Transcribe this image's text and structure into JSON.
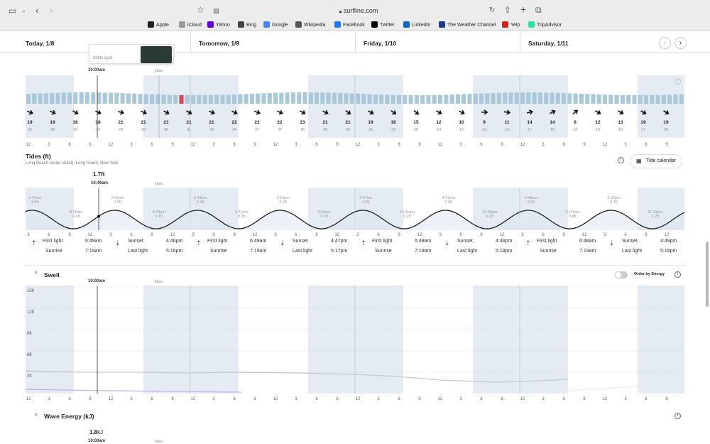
{
  "browser": {
    "url": "surfline.com",
    "bookmarks": [
      {
        "label": "Apple",
        "color": "#222"
      },
      {
        "label": "iCloud",
        "color": "#999"
      },
      {
        "label": "Yahoo",
        "color": "#6001d2"
      },
      {
        "label": "Bing",
        "color": "#444"
      },
      {
        "label": "Google",
        "color": "#4285f4"
      },
      {
        "label": "Wikipedia",
        "color": "#555"
      },
      {
        "label": "Facebook",
        "color": "#1877f2"
      },
      {
        "label": "Twitter",
        "color": "#000"
      },
      {
        "label": "LinkedIn",
        "color": "#0a66c2"
      },
      {
        "label": "The Weather Channel",
        "color": "#1d3c8f"
      },
      {
        "label": "Yelp",
        "color": "#d32323"
      },
      {
        "label": "TripAdvisor",
        "color": "#34e0a1"
      }
    ]
  },
  "days": [
    "Today, 1/8",
    "Tomorrow, 1/9",
    "Friday, 1/10",
    "Saturday, 1/11"
  ],
  "wind": {
    "tooltip_gust": "30kts gust",
    "time": "10:00am",
    "now": "Now",
    "speeds": [
      "19",
      "19",
      "18",
      "18",
      "21",
      "21",
      "21",
      "21",
      "21",
      "22",
      "22",
      "22",
      "23",
      "21",
      "21",
      "19",
      "18",
      "15",
      "12",
      "10",
      "9",
      "11",
      "14",
      "14",
      "8",
      "12",
      "13",
      "19",
      "19"
    ],
    "gusts": [
      "32",
      "30",
      "29",
      "29",
      "28",
      "29",
      "30",
      "31",
      "33",
      "34",
      "37",
      "37",
      "36",
      "30",
      "25",
      "35",
      "33",
      "25",
      "14",
      "12",
      "13",
      "13",
      "17",
      "15",
      "13",
      "12",
      "16",
      "27",
      "26"
    ],
    "hours": [
      "12",
      "3",
      "6",
      "9",
      "12",
      "3",
      "6",
      "9",
      "12",
      "3",
      "6",
      "9",
      "12",
      "3",
      "6",
      "9",
      "12",
      "3",
      "6",
      "9",
      "12",
      "3",
      "6",
      "9",
      "12",
      "3",
      "6",
      "9",
      "12",
      "3",
      "6",
      "9"
    ]
  },
  "tides": {
    "title": "Tides (ft)",
    "location": "Long Beach (outer coast), Long Island, New York",
    "calendar_button": "Tide calendar",
    "current_height": "1.7ft",
    "current_time": "10:49am",
    "now": "Now",
    "extremes": [
      {
        "time": "1:42am",
        "height": "4.5ft"
      },
      {
        "time": "8:20am",
        "height": "0.4ft"
      },
      {
        "time": "2:05pm",
        "height": "3.9ft"
      },
      {
        "time": "8:29pm",
        "height": "0.1ft"
      },
      {
        "time": "2:44am",
        "height": "4.3ft"
      },
      {
        "time": "9:32am",
        "height": "0.3ft"
      },
      {
        "time": "3:15pm",
        "height": "3.9ft"
      },
      {
        "time": "9:29pm",
        "height": "0.1ft"
      },
      {
        "time": "3:47am",
        "height": "4.0ft"
      },
      {
        "time": "10:31am",
        "height": "0.2ft"
      },
      {
        "time": "4:23pm",
        "height": "3.6ft"
      },
      {
        "time": "10:39pm",
        "height": "0.2ft"
      },
      {
        "time": "4:48am",
        "height": "3.9ft"
      },
      {
        "time": "11:27am",
        "height": "0.4ft"
      },
      {
        "time": "5:22pm",
        "height": "3.7ft"
      },
      {
        "time": "11:21pm",
        "height": "0.2ft"
      }
    ],
    "hours": [
      "3",
      "6",
      "9",
      "12",
      "3",
      "6",
      "9",
      "12",
      "3",
      "6",
      "9",
      "12",
      "3",
      "6",
      "9",
      "12",
      "3",
      "6",
      "9",
      "12",
      "3",
      "6",
      "9",
      "12",
      "3",
      "6",
      "9",
      "12",
      "3",
      "6",
      "9",
      "12"
    ],
    "sun": [
      {
        "first_light_label": "First light",
        "first_light": "6:49am",
        "sunrise_label": "Sunrise",
        "sunrise": "7:19am",
        "sunset_label": "Sunset",
        "sunset": "4:46pm",
        "last_light_label": "Last light",
        "last_light": "5:16pm"
      },
      {
        "first_light_label": "First light",
        "first_light": "6:49am",
        "sunrise_label": "Sunrise",
        "sunrise": "7:19am",
        "sunset_label": "Sunset",
        "sunset": "4:47pm",
        "last_light_label": "Last light",
        "last_light": "5:17pm"
      },
      {
        "first_light_label": "First light",
        "first_light": "6:49am",
        "sunrise_label": "Sunrise",
        "sunrise": "7:19am",
        "sunset_label": "Sunset",
        "sunset": "4:48pm",
        "last_light_label": "Last light",
        "last_light": "5:18pm"
      },
      {
        "first_light_label": "First light",
        "first_light": "6:48am",
        "sunrise_label": "Sunrise",
        "sunrise": "7:19am",
        "sunset_label": "Sunset",
        "sunset": "4:49pm",
        "last_light_label": "Last light",
        "last_light": "5:19pm"
      }
    ]
  },
  "swell": {
    "title": "Swell",
    "order_label": "Order by Energy",
    "time": "10:00am",
    "now": "Now",
    "y_labels": [
      "15ft",
      "12ft",
      "9ft",
      "6ft",
      "3ft"
    ],
    "hours": [
      "12",
      "3",
      "6",
      "9",
      "12",
      "3",
      "6",
      "9",
      "12",
      "3",
      "6",
      "9",
      "12",
      "3",
      "6",
      "9",
      "12",
      "3",
      "6",
      "9",
      "12",
      "3",
      "6",
      "9",
      "12",
      "3",
      "6",
      "9",
      "12",
      "3",
      "6",
      "9"
    ]
  },
  "wave_energy": {
    "title": "Wave Energy (kJ)",
    "value": "1.8",
    "unit": "kJ",
    "time": "10:00am",
    "now": "Now"
  },
  "colors": {
    "night": "#dbe4ee",
    "bar": "#a9c9da",
    "current_bar": "#e0465a",
    "tide_fill": "#dde8f0"
  }
}
